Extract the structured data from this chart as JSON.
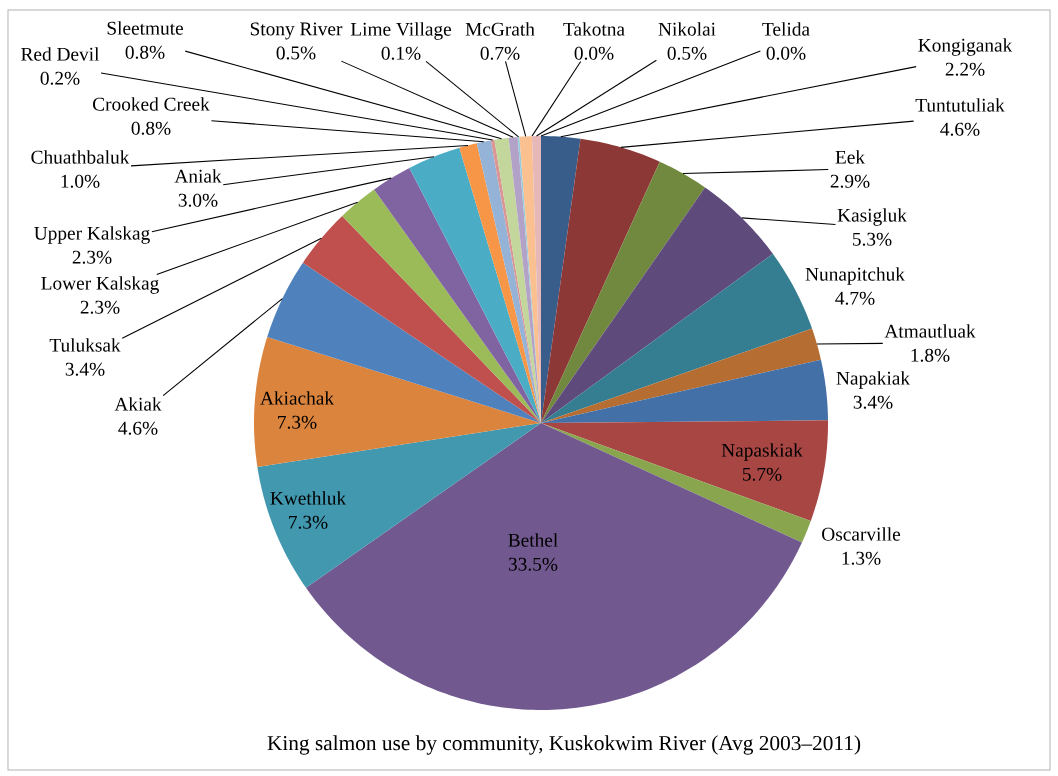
{
  "chart_data": {
    "type": "pie",
    "title": "King salmon use by community, Kuskokwim River (Avg 2003–2011)",
    "categories": [
      "Kongiganak",
      "Tuntutuliak",
      "Eek",
      "Kasigluk",
      "Nunapitchuk",
      "Atmautluak",
      "Napakiak",
      "Napaskiak",
      "Oscarville",
      "Bethel",
      "Kwethluk",
      "Akiachak",
      "Akiak",
      "Tuluksak",
      "Lower Kalskag",
      "Upper Kalskag",
      "Aniak",
      "Chuathbaluk",
      "Crooked Creek",
      "Red Devil",
      "Sleetmute",
      "Stony River",
      "Lime Village",
      "McGrath",
      "Takotna",
      "Nikolai",
      "Telida"
    ],
    "values": [
      2.2,
      4.6,
      2.9,
      5.3,
      4.7,
      1.8,
      3.4,
      5.7,
      1.3,
      33.5,
      7.3,
      7.3,
      4.6,
      3.4,
      2.3,
      2.3,
      3.0,
      1.0,
      0.8,
      0.2,
      0.8,
      0.5,
      0.1,
      0.7,
      0.0,
      0.5,
      0.0
    ],
    "value_labels": [
      "2.2%",
      "4.6%",
      "2.9%",
      "5.3%",
      "4.7%",
      "1.8%",
      "3.4%",
      "5.7%",
      "1.3%",
      "33.5%",
      "7.3%",
      "7.3%",
      "4.6%",
      "3.4%",
      "2.3%",
      "2.3%",
      "3.0%",
      "1.0%",
      "0.8%",
      "0.2%",
      "0.8%",
      "0.5%",
      "0.1%",
      "0.7%",
      "0.0%",
      "0.5%",
      "0.0%"
    ],
    "colors": [
      "#385d8a",
      "#8c3836",
      "#71893f",
      "#5e4a7b",
      "#357d91",
      "#b66d31",
      "#4470a8",
      "#a84643",
      "#89a54e",
      "#71588f",
      "#4198af",
      "#db843d",
      "#4f81bd",
      "#c0504d",
      "#9bbb59",
      "#8064a2",
      "#4bacc6",
      "#f79646",
      "#95b3d7",
      "#d99694",
      "#c3d69b",
      "#b3a2c7",
      "#93cddd",
      "#fac090",
      "#a5a5a5",
      "#e6b9b8",
      "#d7e4bd"
    ]
  }
}
